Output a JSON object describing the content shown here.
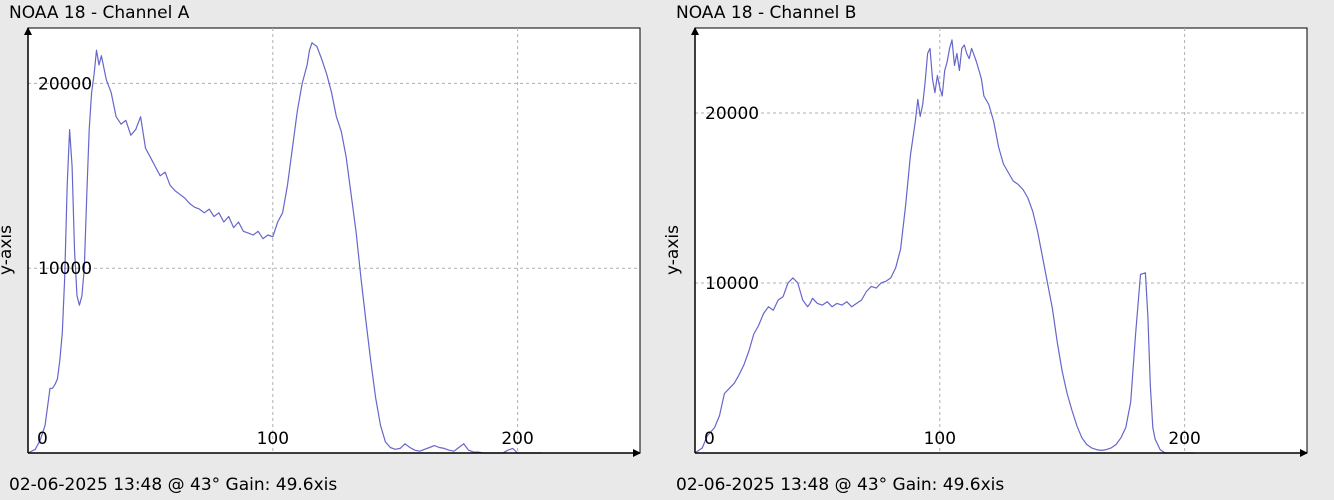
{
  "chart_data": [
    {
      "type": "line",
      "title": "NOAA 18 - Channel A",
      "ylabel": "y-axis",
      "xlabel": "xis",
      "footer": "02-06-2025 13:48 @ 43° Gain: 49.6",
      "xlim": [
        0,
        250
      ],
      "ylim": [
        0,
        23000
      ],
      "xticks": [
        0,
        100,
        200
      ],
      "yticks": [
        10000,
        20000
      ],
      "grid": true,
      "line_color": "#6666cc",
      "series": [
        {
          "x": [
            0,
            3,
            5,
            7,
            9,
            10,
            11,
            12,
            13,
            14,
            15,
            16,
            17,
            18,
            19,
            20,
            21,
            22,
            23,
            24,
            25,
            26,
            27,
            28,
            29,
            30,
            32,
            34,
            36,
            38,
            40,
            42,
            44,
            46,
            48,
            50,
            52,
            54,
            56,
            58,
            60,
            62,
            64,
            66,
            68,
            70,
            72,
            74,
            76,
            78,
            80,
            82,
            84,
            86,
            88,
            90,
            92,
            94,
            96,
            98,
            100,
            102,
            104,
            106,
            108,
            110,
            112,
            114,
            115,
            116,
            118,
            120,
            122,
            124,
            126,
            128,
            130,
            132,
            134,
            136,
            138,
            140,
            142,
            144,
            146,
            148,
            150,
            152,
            154,
            156,
            158,
            160,
            162,
            164,
            166,
            168,
            170,
            172,
            174,
            176,
            178,
            180,
            182,
            184,
            186,
            188,
            190,
            192,
            194,
            196,
            198,
            200,
            202,
            204,
            206,
            208,
            210
          ],
          "values": [
            0,
            200,
            700,
            1500,
            3500,
            3500,
            3700,
            4000,
            5000,
            6500,
            9500,
            14500,
            17500,
            15500,
            11000,
            8500,
            8000,
            8500,
            10000,
            14000,
            17500,
            19500,
            20500,
            21800,
            21000,
            21500,
            20200,
            19500,
            18200,
            17800,
            18000,
            17200,
            17500,
            18200,
            16500,
            16000,
            15500,
            15000,
            15200,
            14500,
            14200,
            14000,
            13800,
            13500,
            13300,
            13200,
            13000,
            13200,
            12800,
            13000,
            12500,
            12800,
            12200,
            12500,
            12000,
            11900,
            11800,
            12000,
            11600,
            11800,
            11700,
            12500,
            13000,
            14500,
            16500,
            18500,
            20000,
            21000,
            21800,
            22200,
            22000,
            21300,
            20500,
            19500,
            18200,
            17400,
            16000,
            14000,
            12000,
            9500,
            7200,
            5000,
            3000,
            1500,
            600,
            300,
            200,
            250,
            500,
            300,
            150,
            100,
            200,
            300,
            400,
            300,
            250,
            150,
            100,
            300,
            500,
            150,
            50,
            50,
            0,
            0,
            0,
            0,
            0,
            150,
            250,
            0,
            0,
            0,
            0,
            0,
            0
          ]
        }
      ]
    },
    {
      "type": "line",
      "title": "NOAA 18 - Channel B",
      "ylabel": "y-axis",
      "xlabel": "xis",
      "footer": "02-06-2025 13:48 @ 43° Gain: 49.6",
      "xlim": [
        0,
        250
      ],
      "ylim": [
        0,
        25000
      ],
      "xticks": [
        0,
        100,
        200
      ],
      "yticks": [
        10000,
        20000
      ],
      "grid": true,
      "line_color": "#6666cc",
      "series": [
        {
          "x": [
            0,
            3,
            5,
            8,
            10,
            12,
            14,
            16,
            18,
            20,
            22,
            24,
            26,
            28,
            30,
            32,
            34,
            36,
            38,
            40,
            42,
            44,
            46,
            47,
            48,
            50,
            52,
            54,
            56,
            58,
            60,
            62,
            64,
            66,
            68,
            70,
            72,
            74,
            76,
            78,
            80,
            82,
            84,
            86,
            88,
            90,
            91,
            92,
            93,
            94,
            95,
            96,
            97,
            98,
            99,
            100,
            101,
            102,
            103,
            104,
            105,
            106,
            107,
            108,
            109,
            110,
            111,
            112,
            113,
            114,
            115,
            116,
            117,
            118,
            120,
            122,
            124,
            126,
            128,
            130,
            132,
            134,
            136,
            138,
            140,
            142,
            144,
            146,
            148,
            150,
            152,
            154,
            156,
            158,
            160,
            162,
            164,
            166,
            168,
            170,
            172,
            174,
            176,
            178,
            180,
            182,
            184,
            185,
            186,
            187,
            188,
            189,
            190,
            191,
            192,
            193,
            194,
            195,
            196,
            198,
            200,
            202,
            204
          ],
          "values": [
            0,
            300,
            1000,
            1500,
            2200,
            3500,
            3800,
            4100,
            4600,
            5200,
            6000,
            7000,
            7500,
            8200,
            8600,
            8400,
            9000,
            9200,
            10000,
            10300,
            10000,
            9000,
            8600,
            8800,
            9100,
            8800,
            8700,
            8900,
            8600,
            8800,
            8700,
            8900,
            8600,
            8800,
            9000,
            9500,
            9800,
            9700,
            10000,
            10100,
            10300,
            10900,
            12000,
            14500,
            17500,
            19500,
            20800,
            19800,
            20500,
            21800,
            23500,
            23800,
            22000,
            21200,
            22200,
            21500,
            21000,
            22500,
            23000,
            23800,
            24300,
            22800,
            23500,
            22500,
            23800,
            24000,
            23500,
            23200,
            23800,
            23400,
            23000,
            22500,
            22000,
            21000,
            20500,
            19500,
            18000,
            17000,
            16500,
            16000,
            15800,
            15500,
            15000,
            14200,
            13000,
            11500,
            10000,
            8500,
            6500,
            4800,
            3500,
            2500,
            1600,
            900,
            500,
            300,
            200,
            150,
            200,
            300,
            500,
            900,
            1500,
            3000,
            7000,
            10500,
            10600,
            8000,
            4000,
            1500,
            800,
            500,
            200,
            100,
            0,
            0,
            0,
            0,
            0,
            0,
            0,
            0,
            0
          ]
        }
      ]
    }
  ]
}
